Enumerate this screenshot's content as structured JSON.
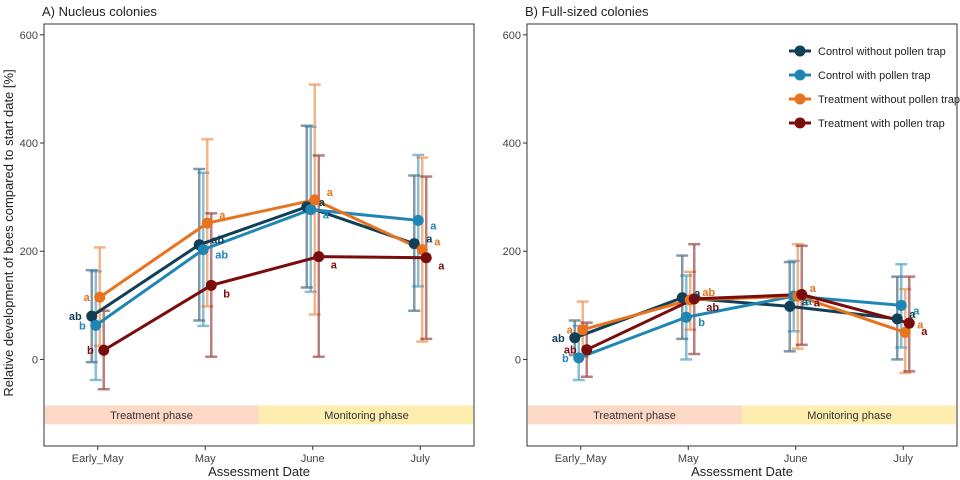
{
  "ylabel": "Relative development of bees compared to start date [%]",
  "xlabel": "Assessment Date",
  "phases": {
    "treatment": "Treatment phase",
    "monitoring": "Monitoring phase"
  },
  "colors": {
    "Control without pollen trap": "#113f55",
    "Control with pollen trap": "#1f86b4",
    "Treatment without pollen trap": "#e8731e",
    "Treatment with pollen trap": "#7a0c0c",
    "treatment_band": "#fcd9c4",
    "monitoring_band": "#fdeeb0"
  },
  "chart_data": [
    {
      "type": "line",
      "title": "A) Nucleus colonies",
      "categories": [
        "Early_May",
        "May",
        "June",
        "July"
      ],
      "ylim": [
        -160,
        620
      ],
      "yticks": [
        0,
        200,
        400,
        600
      ],
      "grid": false,
      "series": [
        {
          "name": "Control without pollen trap",
          "values": [
            80,
            212,
            282,
            214
          ],
          "lower": [
            -5,
            72,
            133,
            90
          ],
          "upper": [
            165,
            352,
            432,
            340
          ],
          "letters": [
            "ab",
            "ab",
            "a",
            "a"
          ]
        },
        {
          "name": "Control with pollen trap",
          "values": [
            63,
            203,
            277,
            257
          ],
          "lower": [
            -38,
            62,
            125,
            135
          ],
          "upper": [
            163,
            345,
            430,
            378
          ],
          "letters": [
            "b",
            "ab",
            "a",
            "a"
          ]
        },
        {
          "name": "Treatment without pollen trap",
          "values": [
            115,
            252,
            295,
            203
          ],
          "lower": [
            25,
            98,
            83,
            33
          ],
          "upper": [
            207,
            407,
            508,
            373
          ],
          "letters": [
            "a",
            "a",
            "a",
            "a"
          ]
        },
        {
          "name": "Treatment with pollen trap",
          "values": [
            17,
            137,
            190,
            188
          ],
          "lower": [
            -55,
            5,
            5,
            38
          ],
          "upper": [
            90,
            270,
            377,
            338
          ],
          "letters": [
            "b",
            "b",
            "a",
            "a"
          ]
        }
      ]
    },
    {
      "type": "line",
      "title": "B) Full-sized colonies",
      "categories": [
        "Early_May",
        "May",
        "June",
        "July"
      ],
      "ylim": [
        -160,
        620
      ],
      "yticks": [
        0,
        200,
        400,
        600
      ],
      "grid": false,
      "legend": "top-right",
      "series": [
        {
          "name": "Control without pollen trap",
          "values": [
            40,
            114,
            98,
            75
          ],
          "lower": [
            8,
            38,
            15,
            0
          ],
          "upper": [
            72,
            192,
            180,
            153
          ],
          "letters": [
            "ab",
            "a",
            "a",
            "a"
          ]
        },
        {
          "name": "Control with pollen trap",
          "values": [
            3,
            78,
            117,
            100
          ],
          "lower": [
            -38,
            0,
            52,
            22
          ],
          "upper": [
            62,
            155,
            182,
            176
          ],
          "letters": [
            "b",
            "b",
            "a",
            "a"
          ]
        },
        {
          "name": "Treatment without pollen trap",
          "values": [
            55,
            110,
            117,
            50
          ],
          "lower": [
            5,
            55,
            20,
            -25
          ],
          "upper": [
            107,
            162,
            213,
            130
          ],
          "letters": [
            "a",
            "ab",
            "a",
            "a"
          ]
        },
        {
          "name": "Treatment with pollen trap",
          "values": [
            18,
            112,
            120,
            67
          ],
          "lower": [
            -32,
            10,
            27,
            -22
          ],
          "upper": [
            68,
            213,
            210,
            153
          ],
          "letters": [
            "ab",
            "ab",
            "a",
            "a"
          ]
        }
      ]
    }
  ]
}
